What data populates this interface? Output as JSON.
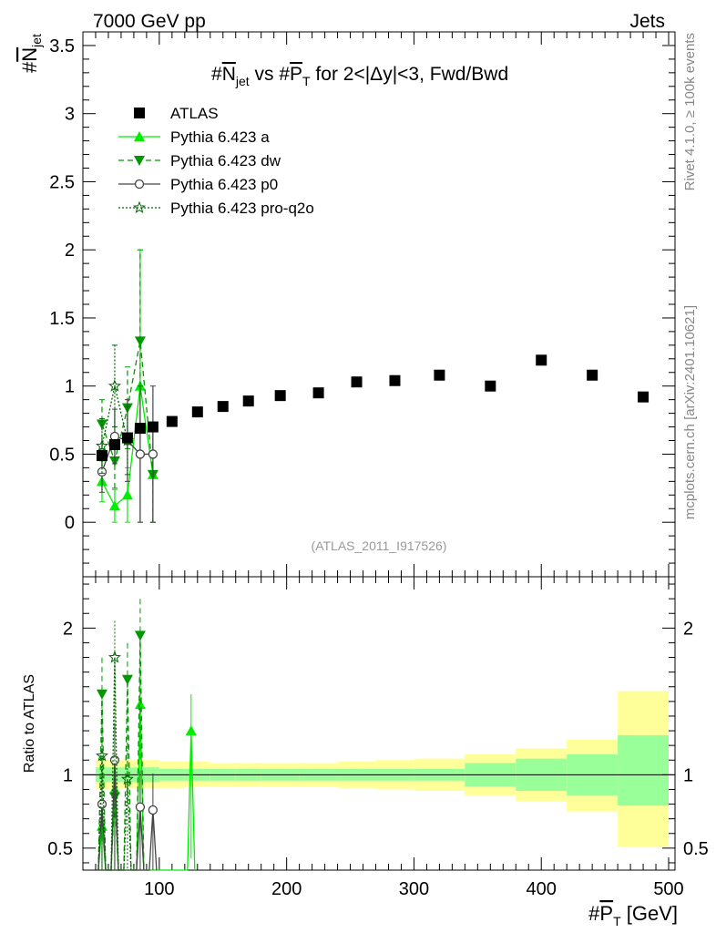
{
  "header": {
    "beam": "7000 GeV pp",
    "category": "Jets",
    "side_top": "Rivet 4.1.0, ≥ 100k events",
    "side_bottom": "mcplots.cern.ch [arXiv:2401.10621]",
    "watermark": "(ATLAS_2011_I917526)"
  },
  "chart_data": {
    "type": "scatter",
    "title": "#N_jet vs #P_T for 2<|Δy|<3, Fwd/Bwd",
    "title_parts": {
      "a": "#",
      "b": "N",
      "c": "jet",
      "d": " vs #",
      "e": "P",
      "f": "T",
      "g": " for 2<|Δy|<3, Fwd/Bwd"
    },
    "ylabel_parts": {
      "a": "#",
      "b": "N",
      "c": "jet"
    },
    "xlabel_parts": {
      "a": "#",
      "b": "P",
      "c": "T",
      "d": " [GeV]"
    },
    "ratio_ylabel": "Ratio to ATLAS",
    "xlim": [
      40,
      505
    ],
    "main_ylim": [
      -0.4,
      3.6
    ],
    "ratio_ylim": [
      0.35,
      2.35
    ],
    "x_ticks": [
      100,
      200,
      300,
      400,
      500
    ],
    "x_tick_labels": [
      "100",
      "200",
      "300",
      "400",
      "500"
    ],
    "main_y_ticks": [
      0,
      0.5,
      1,
      1.5,
      2,
      2.5,
      3,
      3.5
    ],
    "main_y_tick_labels": [
      "0",
      "0.5",
      "1",
      "1.5",
      "2",
      "2.5",
      "3",
      "3.5"
    ],
    "ratio_y_ticks": [
      0.5,
      1,
      2
    ],
    "ratio_y_tick_labels": [
      "0.5",
      "1",
      "2"
    ],
    "legend": [
      {
        "name": "ATLAS",
        "color": "#000000",
        "marker": "square",
        "line": "none"
      },
      {
        "name": "Pythia 6.423 a",
        "color": "#00ee00",
        "marker": "triangle-up",
        "line": "solid"
      },
      {
        "name": "Pythia 6.423 dw",
        "color": "#009900",
        "marker": "triangle-down",
        "line": "dashed"
      },
      {
        "name": "Pythia 6.423 p0",
        "color": "#444444",
        "marker": "circle-open",
        "line": "solid"
      },
      {
        "name": "Pythia 6.423 pro-q2o",
        "color": "#006600",
        "marker": "star",
        "line": "dotted"
      }
    ],
    "data": {
      "bins": [
        [
          50,
          60
        ],
        [
          60,
          70
        ],
        [
          70,
          80
        ],
        [
          80,
          90
        ],
        [
          90,
          100
        ],
        [
          100,
          120
        ],
        [
          120,
          140
        ],
        [
          140,
          160
        ],
        [
          160,
          180
        ],
        [
          180,
          210
        ],
        [
          210,
          240
        ],
        [
          240,
          270
        ],
        [
          270,
          300
        ],
        [
          300,
          340
        ],
        [
          340,
          380
        ],
        [
          380,
          420
        ],
        [
          420,
          460
        ],
        [
          460,
          500
        ]
      ],
      "x": [
        55,
        65,
        75,
        85,
        95,
        110,
        130,
        150,
        170,
        195,
        225,
        255,
        285,
        320,
        360,
        400,
        440,
        480
      ],
      "y": [
        0.49,
        0.57,
        0.62,
        0.69,
        0.7,
        0.74,
        0.81,
        0.85,
        0.89,
        0.93,
        0.95,
        1.03,
        1.04,
        1.08,
        1.0,
        1.19,
        1.08,
        0.92
      ],
      "band_stat_low": [
        0.95,
        0.95,
        0.95,
        0.95,
        0.95,
        0.96,
        0.96,
        0.96,
        0.96,
        0.96,
        0.96,
        0.96,
        0.96,
        0.96,
        0.92,
        0.89,
        0.86,
        0.79
      ],
      "band_stat_high": [
        1.05,
        1.05,
        1.05,
        1.05,
        1.05,
        1.04,
        1.04,
        1.04,
        1.04,
        1.04,
        1.04,
        1.04,
        1.04,
        1.04,
        1.08,
        1.11,
        1.14,
        1.27
      ],
      "band_tot_low": [
        0.9,
        0.9,
        0.91,
        0.91,
        0.91,
        0.91,
        0.92,
        0.92,
        0.92,
        0.92,
        0.92,
        0.91,
        0.9,
        0.89,
        0.86,
        0.82,
        0.75,
        0.51
      ],
      "band_tot_high": [
        1.1,
        1.1,
        1.1,
        1.1,
        1.1,
        1.09,
        1.09,
        1.08,
        1.08,
        1.08,
        1.08,
        1.09,
        1.1,
        1.11,
        1.14,
        1.18,
        1.24,
        1.57
      ]
    },
    "series": [
      {
        "name": "Pythia 6.423 a",
        "x": [
          55,
          65,
          75,
          85,
          95
        ],
        "y": [
          0.3,
          0.12,
          0.2,
          1.0,
          0.35
        ],
        "err": [
          0.15,
          0.12,
          0.2,
          1.0,
          0.35
        ],
        "ratio_x": [
          55,
          65,
          85,
          125
        ],
        "ratio_y": [
          0.65,
          0.9,
          1.48,
          1.3
        ]
      },
      {
        "name": "Pythia 6.423 dw",
        "x": [
          55,
          65,
          75,
          85,
          95
        ],
        "y": [
          0.72,
          0.45,
          0.84,
          1.33,
          0.35
        ],
        "err": [
          0.18,
          0.2,
          0.3,
          0.67,
          0.35
        ],
        "ratio_x": [
          55,
          65,
          75,
          85
        ],
        "ratio_y": [
          1.55,
          0.85,
          1.65,
          1.95
        ]
      },
      {
        "name": "Pythia 6.423 p0",
        "x": [
          55,
          65,
          75,
          85,
          95
        ],
        "y": [
          0.37,
          0.63,
          0.6,
          0.5,
          0.5
        ],
        "err": [
          0.15,
          0.2,
          0.3,
          0.5,
          0.5
        ],
        "ratio_x": [
          55,
          65,
          85,
          95
        ],
        "ratio_y": [
          0.8,
          1.1,
          0.78,
          0.76
        ]
      },
      {
        "name": "Pythia 6.423 pro-q2o",
        "x": [
          55,
          65,
          75
        ],
        "y": [
          0.56,
          1.0,
          0.6
        ],
        "err": [
          0.2,
          0.3,
          0.25
        ],
        "ratio_x": [
          55,
          65,
          75
        ],
        "ratio_y": [
          1.13,
          1.8,
          0.97
        ]
      }
    ]
  }
}
